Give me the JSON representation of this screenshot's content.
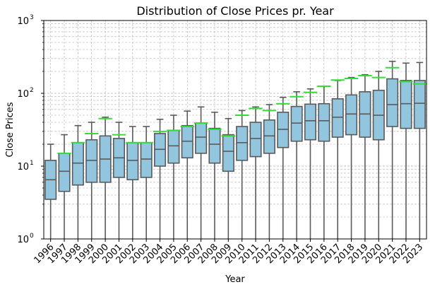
{
  "chart_data": {
    "type": "box",
    "title": "Distribution of Close Prices pr. Year",
    "xlabel": "Year",
    "ylabel": "Close Prices",
    "yscale": "log",
    "ylim": [
      1,
      1000
    ],
    "grid": "both (major and minor)",
    "colors": {
      "box_fill": "#92c5de",
      "box_edge": "#5a5a5a",
      "marker": "#33dd33"
    },
    "y_ticks": [
      {
        "value": 1,
        "base": "10",
        "exp": "0"
      },
      {
        "value": 10,
        "base": "10",
        "exp": "1"
      },
      {
        "value": 100,
        "base": "10",
        "exp": "2"
      },
      {
        "value": 1000,
        "base": "10",
        "exp": "3"
      }
    ],
    "categories": [
      "1996",
      "1997",
      "1998",
      "1999",
      "2000",
      "2001",
      "2002",
      "2003",
      "2004",
      "2005",
      "2006",
      "2007",
      "2008",
      "2009",
      "2010",
      "2011",
      "2012",
      "2013",
      "2014",
      "2015",
      "2016",
      "2017",
      "2018",
      "2019",
      "2020",
      "2021",
      "2022",
      "2023"
    ],
    "boxes": [
      {
        "whisker_low": 1,
        "q1": 3.5,
        "median": 6.5,
        "q3": 12,
        "whisker_high": 20,
        "marker": null
      },
      {
        "whisker_low": 1,
        "q1": 4.5,
        "median": 8.5,
        "q3": 15,
        "whisker_high": 27,
        "marker": 15
      },
      {
        "whisker_low": 1,
        "q1": 5.5,
        "median": 11,
        "q3": 21,
        "whisker_high": 36,
        "marker": 21
      },
      {
        "whisker_low": 1,
        "q1": 6,
        "median": 12,
        "q3": 23,
        "whisker_high": 40,
        "marker": 28
      },
      {
        "whisker_low": 1,
        "q1": 6,
        "median": 12.5,
        "q3": 26,
        "whisker_high": 47,
        "marker": 45
      },
      {
        "whisker_low": 1,
        "q1": 7,
        "median": 13,
        "q3": 24,
        "whisker_high": 40,
        "marker": 27
      },
      {
        "whisker_low": 1,
        "q1": 6.5,
        "median": 12,
        "q3": 21,
        "whisker_high": 35,
        "marker": 21
      },
      {
        "whisker_low": 1,
        "q1": 7,
        "median": 12.5,
        "q3": 21,
        "whisker_high": 35,
        "marker": 21
      },
      {
        "whisker_low": 1,
        "q1": 10,
        "median": 17,
        "q3": 28,
        "whisker_high": 44,
        "marker": 30
      },
      {
        "whisker_low": 1,
        "q1": 11,
        "median": 19,
        "q3": 31,
        "whisker_high": 50,
        "marker": 31
      },
      {
        "whisker_low": 1,
        "q1": 13,
        "median": 22,
        "q3": 36,
        "whisker_high": 57,
        "marker": 35
      },
      {
        "whisker_low": 1,
        "q1": 15,
        "median": 25,
        "q3": 39,
        "whisker_high": 65,
        "marker": 39
      },
      {
        "whisker_low": 1,
        "q1": 11,
        "median": 20,
        "q3": 33,
        "whisker_high": 55,
        "marker": 32
      },
      {
        "whisker_low": 1,
        "q1": 8.5,
        "median": 16,
        "q3": 27,
        "whisker_high": 45,
        "marker": 26
      },
      {
        "whisker_low": 1,
        "q1": 12,
        "median": 21,
        "q3": 35,
        "whisker_high": 58,
        "marker": 50
      },
      {
        "whisker_low": 1,
        "q1": 13.5,
        "median": 24,
        "q3": 40,
        "whisker_high": 65,
        "marker": 62
      },
      {
        "whisker_low": 1,
        "q1": 15,
        "median": 26,
        "q3": 43,
        "whisker_high": 70,
        "marker": 58
      },
      {
        "whisker_low": 1,
        "q1": 18,
        "median": 32,
        "q3": 55,
        "whisker_high": 88,
        "marker": 72
      },
      {
        "whisker_low": 1,
        "q1": 22,
        "median": 39,
        "q3": 66,
        "whisker_high": 105,
        "marker": 90
      },
      {
        "whisker_low": 1,
        "q1": 23,
        "median": 42,
        "q3": 71,
        "whisker_high": 115,
        "marker": 103
      },
      {
        "whisker_low": 1,
        "q1": 22,
        "median": 42,
        "q3": 72,
        "whisker_high": 125,
        "marker": 125
      },
      {
        "whisker_low": 1,
        "q1": 25,
        "median": 47,
        "q3": 84,
        "whisker_high": 150,
        "marker": 152
      },
      {
        "whisker_low": 1,
        "q1": 27,
        "median": 52,
        "q3": 95,
        "whisker_high": 165,
        "marker": 160
      },
      {
        "whisker_low": 1,
        "q1": 25,
        "median": 52,
        "q3": 105,
        "whisker_high": 180,
        "marker": 175
      },
      {
        "whisker_low": 1,
        "q1": 23,
        "median": 50,
        "q3": 110,
        "whisker_high": 200,
        "marker": 165
      },
      {
        "whisker_low": 1,
        "q1": 35,
        "median": 70,
        "q3": 158,
        "whisker_high": 275,
        "marker": 225
      },
      {
        "whisker_low": 1,
        "q1": 33,
        "median": 72,
        "q3": 150,
        "whisker_high": 260,
        "marker": 145
      },
      {
        "whisker_low": 1,
        "q1": 33,
        "median": 73,
        "q3": 150,
        "whisker_high": 265,
        "marker": 135
      }
    ]
  }
}
